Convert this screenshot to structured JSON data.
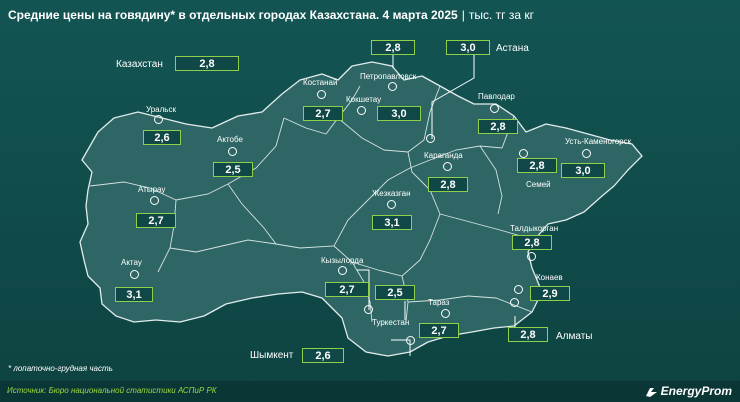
{
  "header": {
    "title": "Средние цены на говядину* в отдельных городах Казахстана. 4 марта 2025",
    "separator": "|",
    "unit": "тыс. тг за кг"
  },
  "kazakhstan": {
    "label": "Казахстан",
    "value": "2,8"
  },
  "cities": {
    "uralsk": {
      "name": "Уральск",
      "value": "2,6"
    },
    "aktobe": {
      "name": "Актобе",
      "value": "2,5"
    },
    "atyrau": {
      "name": "Атырау",
      "value": "2,7"
    },
    "aktau": {
      "name": "Актау",
      "value": "3,1"
    },
    "kostanay": {
      "name": "Костанай",
      "value": "2,7"
    },
    "petropavlovsk": {
      "name": "Петропавловск",
      "value": "2,8"
    },
    "kokshetau": {
      "name": "Кокшетау",
      "value": "3,0"
    },
    "astana": {
      "name": "Астана",
      "value": "3,0"
    },
    "pavlodar": {
      "name": "Павлодар",
      "value": "2,8"
    },
    "karaganda": {
      "name": "Караганда",
      "value": "2,8"
    },
    "zhezkazgan": {
      "name": "Жезказган",
      "value": "3,1"
    },
    "ust_kamenogorsk": {
      "name": "Усть-Каменогорск",
      "value": "3,0"
    },
    "semey": {
      "name": "Семей",
      "value": "2,8"
    },
    "taldykorgan": {
      "name": "Талдыкорган",
      "value": "2,8"
    },
    "konaev": {
      "name": "Конаев",
      "value": "2,9"
    },
    "almaty": {
      "name": "Алматы",
      "value": "2,8"
    },
    "kyzylorda": {
      "name": "Кызылорда",
      "value": "2,7"
    },
    "turkestan": {
      "name": "Туркестан",
      "value": "2,5"
    },
    "taraz": {
      "name": "Тараз",
      "value": "2,7"
    },
    "shymkent": {
      "name": "Шымкент",
      "value": "2,6"
    }
  },
  "footnote": "* лопаточно-грудная часть",
  "source": "Источник: Бюро национальной статистики АСПиР РК",
  "brand": "EnergyProm",
  "colors": {
    "background": "#135553",
    "map_fill": "#2d6664",
    "border": "#cfe0df",
    "accent": "#8ed04a",
    "text": "#ffffff"
  }
}
